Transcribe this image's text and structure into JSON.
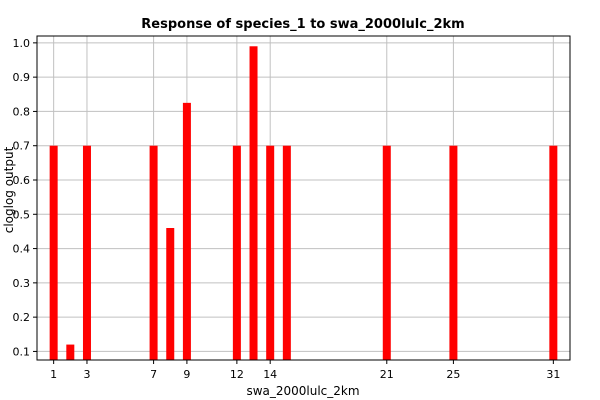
{
  "chart_data": {
    "type": "bar",
    "title": "Response of species_1 to swa_2000lulc_2km",
    "xlabel": "swa_2000lulc_2km",
    "ylabel": "cloglog output",
    "x_ticks": [
      1,
      3,
      7,
      9,
      12,
      14,
      21,
      25,
      31
    ],
    "y_ticks": [
      "0.1",
      "0.2",
      "0.3",
      "0.4",
      "0.5",
      "0.6",
      "0.7",
      "0.8",
      "0.9",
      "1.0"
    ],
    "xlim": [
      0.0,
      32.0
    ],
    "ylim": [
      0.075,
      1.02
    ],
    "grid": true,
    "bar_color": "#ff0000",
    "series": [
      {
        "x": [
          1,
          2,
          3,
          7,
          8,
          9,
          12,
          13,
          14,
          15,
          21,
          25,
          31
        ],
        "values": [
          0.7,
          0.12,
          0.7,
          0.7,
          0.46,
          0.825,
          0.7,
          0.99,
          0.7,
          0.7,
          0.7,
          0.7,
          0.7
        ]
      }
    ]
  }
}
